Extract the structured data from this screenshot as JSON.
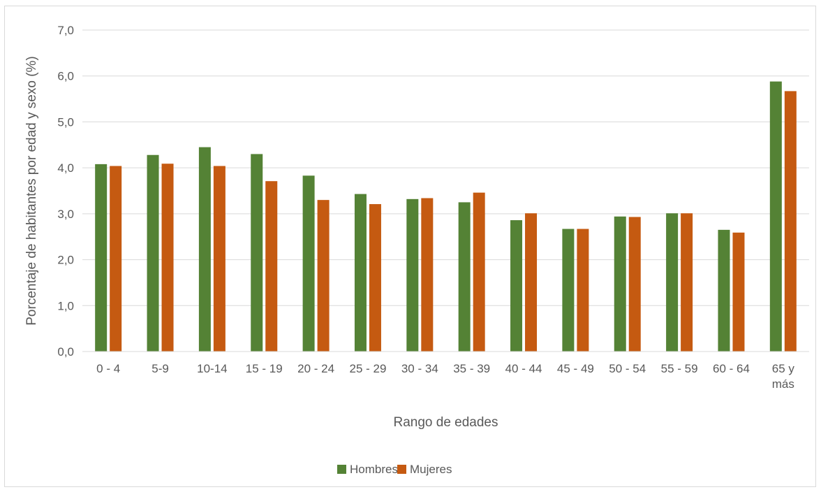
{
  "chart_data": {
    "type": "bar",
    "title": "",
    "xlabel": "Rango de edades",
    "ylabel": "Porcentaje de habitantes por edad y sexo (%)",
    "ylim": [
      0,
      7
    ],
    "yticks": [
      "0,0",
      "1,0",
      "2,0",
      "3,0",
      "4,0",
      "5,0",
      "6,0",
      "7,0"
    ],
    "grid": true,
    "legend_position": "bottom",
    "categories": [
      [
        "0 - 4"
      ],
      [
        "5-9"
      ],
      [
        "10-14"
      ],
      [
        "15 - 19"
      ],
      [
        "20 - 24"
      ],
      [
        "25 - 29"
      ],
      [
        "30 - 34"
      ],
      [
        "35 - 39"
      ],
      [
        "40 - 44"
      ],
      [
        "45 - 49"
      ],
      [
        "50 - 54"
      ],
      [
        "55 - 59"
      ],
      [
        "60 - 64"
      ],
      [
        "65 y",
        "más"
      ]
    ],
    "series": [
      {
        "name": "Hombres",
        "color": "#548235",
        "values": [
          4.08,
          4.28,
          4.45,
          4.3,
          3.83,
          3.43,
          3.32,
          3.25,
          2.86,
          2.67,
          2.94,
          3.01,
          2.65,
          5.88
        ]
      },
      {
        "name": "Mujeres",
        "color": "#c55a11",
        "values": [
          4.04,
          4.09,
          4.04,
          3.71,
          3.3,
          3.21,
          3.34,
          3.46,
          3.01,
          2.67,
          2.93,
          3.01,
          2.59,
          5.67
        ]
      }
    ]
  }
}
